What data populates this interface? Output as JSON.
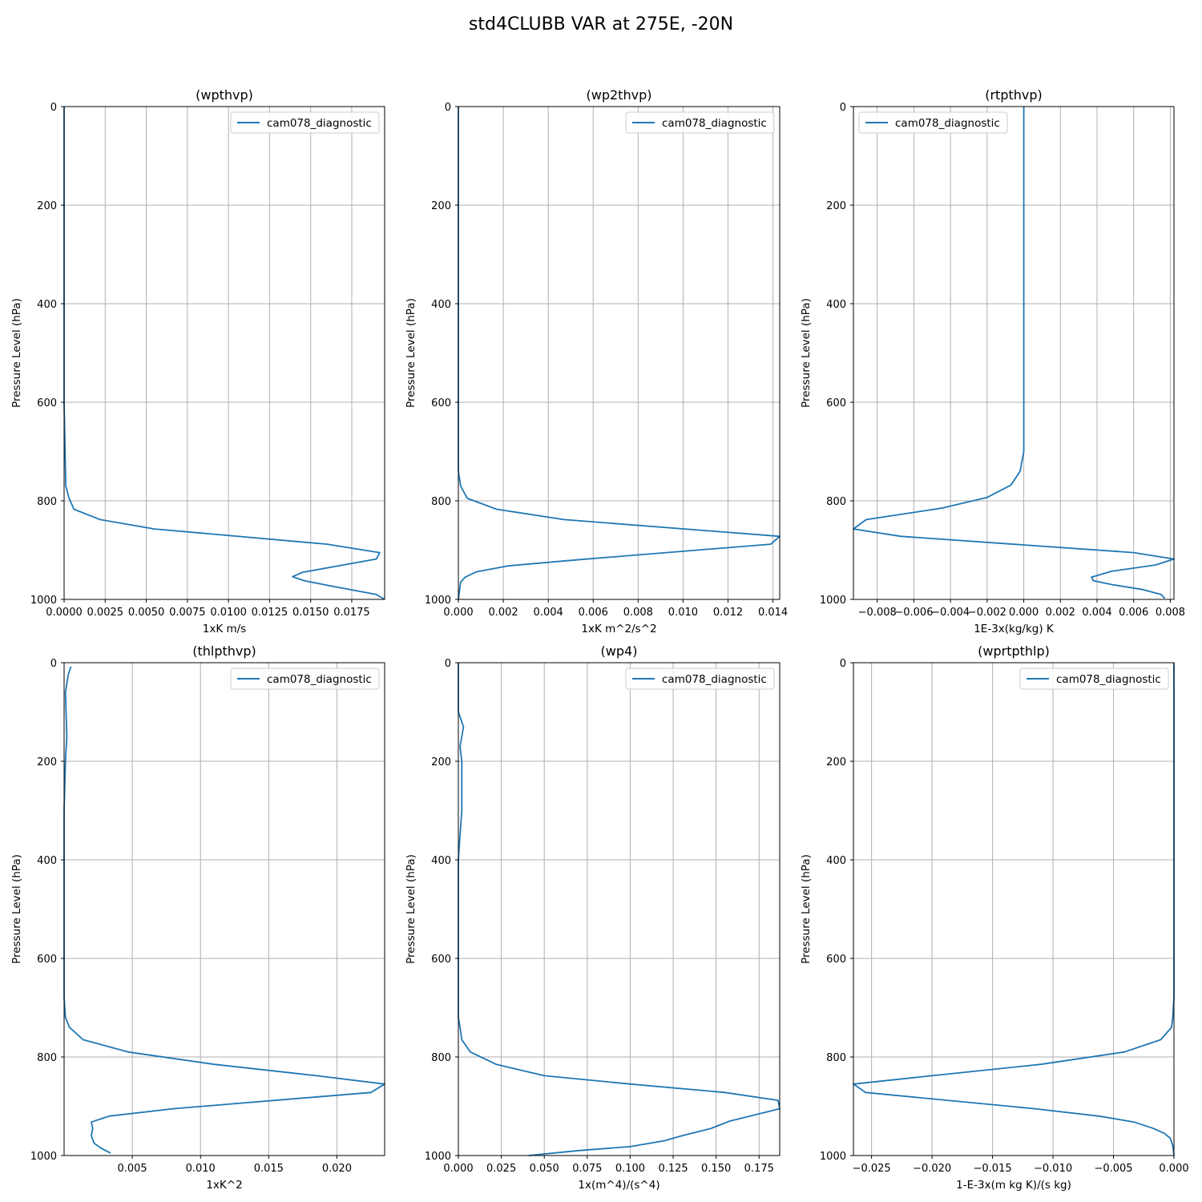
{
  "title": "std4CLUBB VAR at 275E, -20N",
  "colors": {
    "series": "#1f77b4",
    "grid": "#b0b0b0",
    "legend_border": "#cccccc"
  },
  "chart_data": [
    {
      "type": "line",
      "title": "(wpthvp)",
      "xlabel": "1xK m/s",
      "ylabel": "Pressure Level (hPa)",
      "xlim": [
        0.0,
        0.0195
      ],
      "ylim": [
        1000,
        0
      ],
      "xticks": [
        "0.0000",
        "0.0025",
        "0.0050",
        "0.0075",
        "0.0100",
        "0.0125",
        "0.0150",
        "0.0175"
      ],
      "xtick_values": [
        0.0,
        0.0025,
        0.005,
        0.0075,
        0.01,
        0.0125,
        0.015,
        0.0175
      ],
      "yticks": [
        "0",
        "200",
        "400",
        "600",
        "800",
        "1000"
      ],
      "ytick_values": [
        0,
        200,
        400,
        600,
        800,
        1000
      ],
      "grid": true,
      "legend_position": "top-right",
      "series": [
        {
          "name": "cam078_diagnostic",
          "x": [
            0.0,
            0.0,
            0.0,
            0.0,
            0.0001,
            0.0003,
            0.0006,
            0.0022,
            0.0055,
            0.016,
            0.0192,
            0.019,
            0.0145,
            0.0139,
            0.0146,
            0.0161,
            0.019,
            0.0195
          ],
          "y": [
            0,
            200,
            400,
            600,
            770,
            795,
            817,
            838,
            857,
            888,
            905,
            918,
            945,
            954,
            962,
            972,
            990,
            1000
          ]
        }
      ]
    },
    {
      "type": "line",
      "title": "(wp2thvp)",
      "xlabel": "1xK m^2/s^2",
      "ylabel": "Pressure Level (hPa)",
      "xlim": [
        0.0,
        0.0143
      ],
      "ylim": [
        1000,
        0
      ],
      "xticks": [
        "0.000",
        "0.002",
        "0.004",
        "0.006",
        "0.008",
        "0.010",
        "0.012",
        "0.014"
      ],
      "xtick_values": [
        0.0,
        0.002,
        0.004,
        0.006,
        0.008,
        0.01,
        0.012,
        0.014
      ],
      "yticks": [
        "0",
        "200",
        "400",
        "600",
        "800",
        "1000"
      ],
      "ytick_values": [
        0,
        200,
        400,
        600,
        800,
        1000
      ],
      "grid": true,
      "legend_position": "top-right",
      "series": [
        {
          "name": "cam078_diagnostic",
          "x": [
            0.0,
            0.0,
            0.0,
            0.0001,
            0.0004,
            0.0017,
            0.0047,
            0.0143,
            0.0139,
            0.0052,
            0.0022,
            0.0008,
            0.0003,
            0.0001,
            0.0
          ],
          "y": [
            0,
            400,
            740,
            770,
            795,
            817,
            838,
            872,
            888,
            920,
            932,
            944,
            955,
            965,
            1000
          ]
        }
      ]
    },
    {
      "type": "line",
      "title": "(rtpthvp)",
      "xlabel": "1E-3x(kg/kg) K",
      "ylabel": "Pressure Level (hPa)",
      "xlim": [
        -0.0093,
        0.0082
      ],
      "ylim": [
        1000,
        0
      ],
      "xticks": [
        "−0.008",
        "−0.006",
        "−0.004",
        "−0.002",
        "0.000",
        "0.002",
        "0.004",
        "0.006",
        "0.008"
      ],
      "xtick_values": [
        -0.008,
        -0.006,
        -0.004,
        -0.002,
        0.0,
        0.002,
        0.004,
        0.006,
        0.008
      ],
      "yticks": [
        "0",
        "200",
        "400",
        "600",
        "800",
        "1000"
      ],
      "ytick_values": [
        0,
        200,
        400,
        600,
        800,
        1000
      ],
      "grid": true,
      "legend_position": "top-left",
      "series": [
        {
          "name": "cam078_diagnostic",
          "x": [
            0.0,
            0.0,
            0.0,
            -0.0001,
            -0.0002,
            -0.0007,
            -0.002,
            -0.0045,
            -0.0086,
            -0.0093,
            -0.0067,
            0.006,
            0.0082,
            0.0072,
            0.0048,
            0.0037,
            0.0038,
            0.0048,
            0.0065,
            0.0075,
            0.0077
          ],
          "y": [
            0,
            400,
            700,
            720,
            740,
            768,
            793,
            815,
            838,
            857,
            872,
            905,
            918,
            930,
            943,
            955,
            962,
            970,
            980,
            990,
            998
          ]
        }
      ]
    },
    {
      "type": "line",
      "title": "(thlpthvp)",
      "xlabel": "1xK^2",
      "ylabel": "Pressure Level (hPa)",
      "xlim": [
        0.0,
        0.0235
      ],
      "ylim": [
        1000,
        0
      ],
      "xticks": [
        "0.005",
        "0.010",
        "0.015",
        "0.020"
      ],
      "xtick_values": [
        0.005,
        0.01,
        0.015,
        0.02
      ],
      "yticks": [
        "0",
        "200",
        "400",
        "600",
        "800",
        "1000"
      ],
      "ytick_values": [
        0,
        200,
        400,
        600,
        800,
        1000
      ],
      "grid": true,
      "legend_position": "top-right",
      "series": [
        {
          "name": "cam078_diagnostic",
          "x": [
            0.0005,
            0.0003,
            0.0001,
            0.0002,
            0.0001,
            0.0,
            0.0,
            0.0,
            0.0001,
            0.0004,
            0.0014,
            0.0047,
            0.011,
            0.0185,
            0.0235,
            0.0225,
            0.008,
            0.0033,
            0.002,
            0.0021,
            0.002,
            0.0022,
            0.0027,
            0.0034
          ],
          "y": [
            8,
            25,
            60,
            150,
            200,
            300,
            500,
            680,
            720,
            740,
            765,
            790,
            815,
            838,
            855,
            872,
            905,
            920,
            932,
            945,
            960,
            975,
            985,
            995
          ]
        }
      ]
    },
    {
      "type": "line",
      "title": "(wp4)",
      "xlabel": "1x(m^4)/(s^4)",
      "ylabel": "Pressure Level (hPa)",
      "xlim": [
        0.0,
        0.187
      ],
      "ylim": [
        1000,
        0
      ],
      "xticks": [
        "0.000",
        "0.025",
        "0.050",
        "0.075",
        "0.100",
        "0.125",
        "0.150",
        "0.175"
      ],
      "xtick_values": [
        0.0,
        0.025,
        0.05,
        0.075,
        0.1,
        0.125,
        0.15,
        0.175
      ],
      "yticks": [
        "0",
        "200",
        "400",
        "600",
        "800",
        "1000"
      ],
      "ytick_values": [
        0,
        200,
        400,
        600,
        800,
        1000
      ],
      "grid": true,
      "legend_position": "top-right",
      "series": [
        {
          "name": "cam078_diagnostic",
          "x": [
            0.0,
            0.0,
            0.001,
            0.002,
            0.003,
            0.001,
            0.002,
            0.002,
            0.001,
            0.0,
            0.0,
            0.0,
            0.001,
            0.002,
            0.007,
            0.022,
            0.05,
            0.1,
            0.155,
            0.186,
            0.187,
            0.158,
            0.147,
            0.13,
            0.12,
            0.1,
            0.07,
            0.041
          ],
          "y": [
            0,
            100,
            110,
            120,
            130,
            170,
            200,
            300,
            350,
            400,
            600,
            720,
            740,
            765,
            790,
            815,
            838,
            855,
            872,
            888,
            905,
            930,
            945,
            960,
            970,
            982,
            990,
            1000
          ]
        }
      ]
    },
    {
      "type": "line",
      "title": "(wprtpthlp)",
      "xlabel": "1-E-3x(m kg K)/(s kg)",
      "ylabel": "Pressure Level (hPa)",
      "xlim": [
        -0.0265,
        0.0
      ],
      "ylim": [
        1000,
        0
      ],
      "xticks": [
        "−0.025",
        "−0.020",
        "−0.015",
        "−0.010",
        "−0.005",
        "0.000"
      ],
      "xtick_values": [
        -0.025,
        -0.02,
        -0.015,
        -0.01,
        -0.005,
        0.0
      ],
      "yticks": [
        "0",
        "200",
        "400",
        "600",
        "800",
        "1000"
      ],
      "ytick_values": [
        0,
        200,
        400,
        600,
        800,
        1000
      ],
      "grid": true,
      "legend_position": "top-right",
      "series": [
        {
          "name": "cam078_diagnostic",
          "x": [
            0.0,
            0.0,
            0.0,
            -0.0001,
            -0.0002,
            -0.0011,
            -0.0041,
            -0.011,
            -0.02,
            -0.0265,
            -0.0255,
            -0.0115,
            -0.0062,
            -0.0033,
            -0.0017,
            -0.0008,
            -0.0003,
            -0.0001,
            0.0
          ],
          "y": [
            0,
            400,
            680,
            720,
            740,
            765,
            790,
            815,
            838,
            855,
            872,
            905,
            920,
            932,
            945,
            955,
            965,
            980,
            1000
          ]
        }
      ]
    }
  ]
}
